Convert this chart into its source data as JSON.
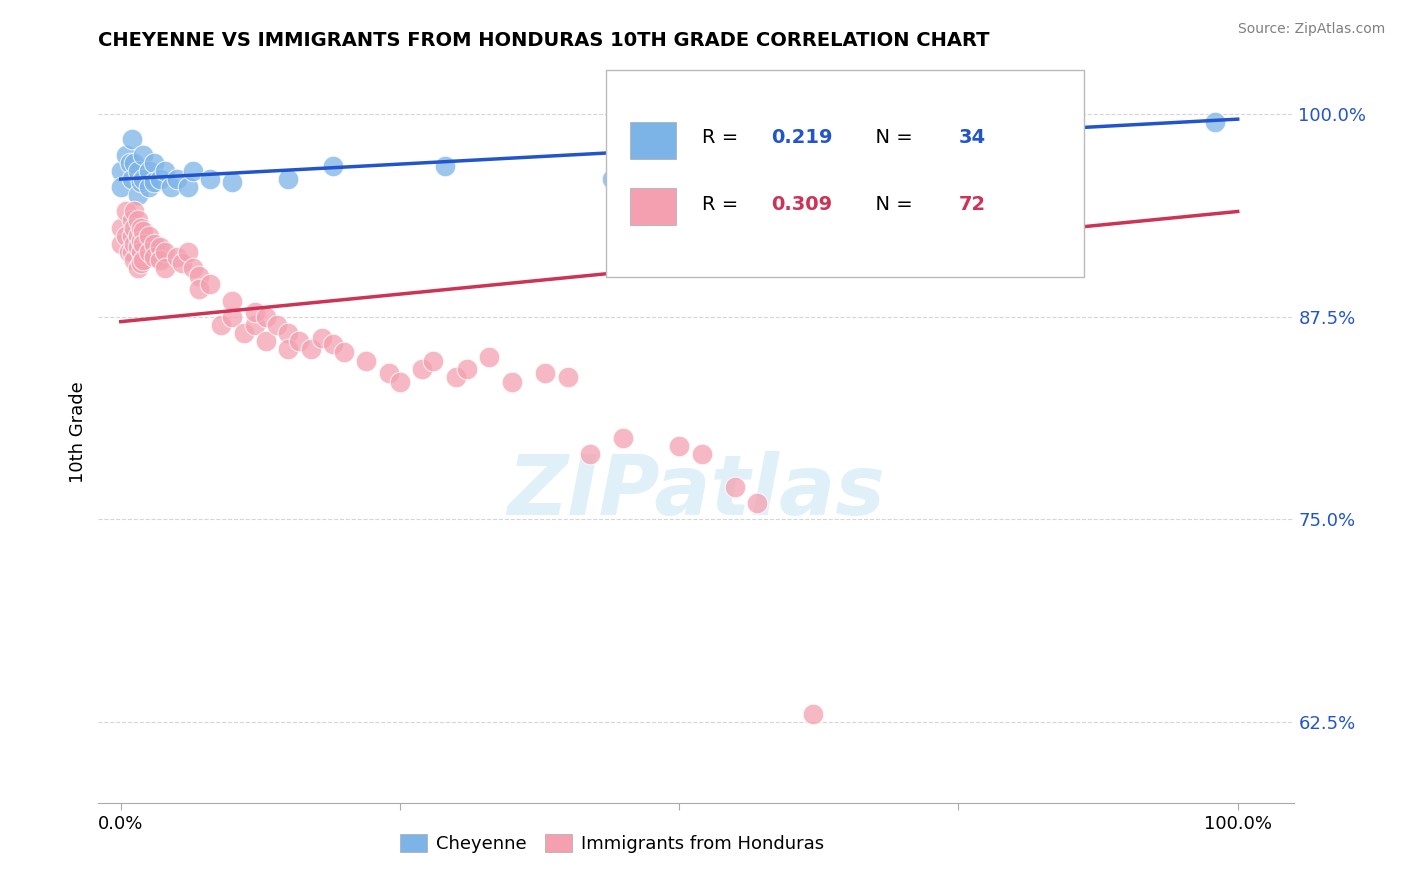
{
  "title": "CHEYENNE VS IMMIGRANTS FROM HONDURAS 10TH GRADE CORRELATION CHART",
  "source": "Source: ZipAtlas.com",
  "ylabel": "10th Grade",
  "cheyenne_color": "#7cb4e8",
  "honduras_color": "#f4a0b0",
  "cheyenne_line_color": "#2255cc",
  "honduras_line_color": "#cc3355",
  "R_cheyenne": 0.219,
  "N_cheyenne": 34,
  "R_honduras": 0.309,
  "N_honduras": 72,
  "cheyenne_points": [
    [
      0.0,
      0.965
    ],
    [
      0.0,
      0.955
    ],
    [
      0.005,
      0.975
    ],
    [
      0.008,
      0.97
    ],
    [
      0.01,
      0.985
    ],
    [
      0.01,
      0.96
    ],
    [
      0.012,
      0.97
    ],
    [
      0.015,
      0.965
    ],
    [
      0.015,
      0.95
    ],
    [
      0.018,
      0.958
    ],
    [
      0.02,
      0.975
    ],
    [
      0.02,
      0.96
    ],
    [
      0.025,
      0.965
    ],
    [
      0.025,
      0.955
    ],
    [
      0.03,
      0.97
    ],
    [
      0.03,
      0.958
    ],
    [
      0.035,
      0.96
    ],
    [
      0.04,
      0.965
    ],
    [
      0.045,
      0.955
    ],
    [
      0.05,
      0.96
    ],
    [
      0.06,
      0.955
    ],
    [
      0.065,
      0.965
    ],
    [
      0.08,
      0.96
    ],
    [
      0.1,
      0.958
    ],
    [
      0.15,
      0.96
    ],
    [
      0.19,
      0.968
    ],
    [
      0.29,
      0.968
    ],
    [
      0.44,
      0.96
    ],
    [
      0.58,
      0.96
    ],
    [
      0.6,
      0.985
    ],
    [
      0.65,
      0.985
    ],
    [
      0.68,
      0.985
    ],
    [
      0.75,
      0.98
    ],
    [
      0.98,
      0.995
    ]
  ],
  "honduras_points": [
    [
      0.0,
      0.93
    ],
    [
      0.0,
      0.92
    ],
    [
      0.005,
      0.94
    ],
    [
      0.005,
      0.925
    ],
    [
      0.007,
      0.915
    ],
    [
      0.01,
      0.935
    ],
    [
      0.01,
      0.925
    ],
    [
      0.01,
      0.915
    ],
    [
      0.012,
      0.94
    ],
    [
      0.012,
      0.93
    ],
    [
      0.012,
      0.92
    ],
    [
      0.012,
      0.91
    ],
    [
      0.015,
      0.935
    ],
    [
      0.015,
      0.925
    ],
    [
      0.015,
      0.918
    ],
    [
      0.015,
      0.905
    ],
    [
      0.018,
      0.93
    ],
    [
      0.018,
      0.922
    ],
    [
      0.018,
      0.915
    ],
    [
      0.018,
      0.908
    ],
    [
      0.02,
      0.928
    ],
    [
      0.02,
      0.92
    ],
    [
      0.02,
      0.91
    ],
    [
      0.025,
      0.925
    ],
    [
      0.025,
      0.915
    ],
    [
      0.03,
      0.92
    ],
    [
      0.03,
      0.912
    ],
    [
      0.035,
      0.918
    ],
    [
      0.035,
      0.91
    ],
    [
      0.04,
      0.915
    ],
    [
      0.04,
      0.905
    ],
    [
      0.05,
      0.912
    ],
    [
      0.055,
      0.908
    ],
    [
      0.06,
      0.915
    ],
    [
      0.065,
      0.905
    ],
    [
      0.07,
      0.9
    ],
    [
      0.07,
      0.892
    ],
    [
      0.08,
      0.895
    ],
    [
      0.09,
      0.87
    ],
    [
      0.1,
      0.875
    ],
    [
      0.1,
      0.885
    ],
    [
      0.11,
      0.865
    ],
    [
      0.12,
      0.87
    ],
    [
      0.12,
      0.878
    ],
    [
      0.13,
      0.875
    ],
    [
      0.13,
      0.86
    ],
    [
      0.14,
      0.87
    ],
    [
      0.15,
      0.865
    ],
    [
      0.15,
      0.855
    ],
    [
      0.16,
      0.86
    ],
    [
      0.17,
      0.855
    ],
    [
      0.18,
      0.862
    ],
    [
      0.19,
      0.858
    ],
    [
      0.2,
      0.853
    ],
    [
      0.22,
      0.848
    ],
    [
      0.24,
      0.84
    ],
    [
      0.25,
      0.835
    ],
    [
      0.27,
      0.843
    ],
    [
      0.28,
      0.848
    ],
    [
      0.3,
      0.838
    ],
    [
      0.31,
      0.843
    ],
    [
      0.33,
      0.85
    ],
    [
      0.35,
      0.835
    ],
    [
      0.38,
      0.84
    ],
    [
      0.4,
      0.838
    ],
    [
      0.42,
      0.79
    ],
    [
      0.45,
      0.8
    ],
    [
      0.5,
      0.795
    ],
    [
      0.52,
      0.79
    ],
    [
      0.55,
      0.77
    ],
    [
      0.57,
      0.76
    ],
    [
      0.62,
      0.63
    ]
  ],
  "cheyenne_line": {
    "x0": 0.0,
    "y0": 0.96,
    "x1": 1.0,
    "y1": 0.997
  },
  "honduras_line": {
    "x0": 0.0,
    "y0": 0.872,
    "x1": 1.0,
    "y1": 0.94
  },
  "ylim": [
    0.575,
    1.032
  ],
  "xlim": [
    -0.02,
    1.05
  ],
  "yticks": [
    0.625,
    0.75,
    0.875,
    1.0
  ],
  "ytick_labels": [
    "62.5%",
    "75.0%",
    "87.5%",
    "100.0%"
  ],
  "watermark_text": "ZIPatlas",
  "background_color": "#ffffff",
  "grid_color": "#cccccc"
}
